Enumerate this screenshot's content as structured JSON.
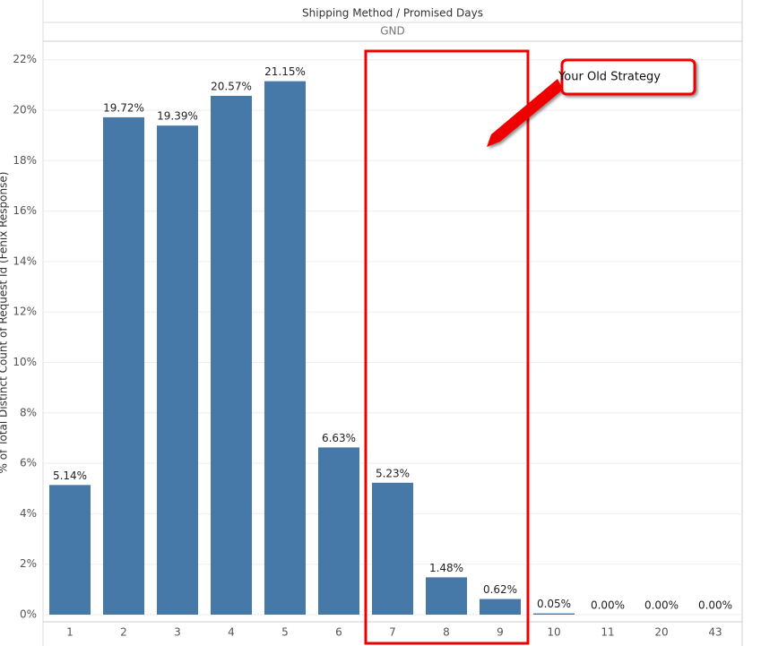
{
  "chart_data": {
    "type": "bar",
    "header_title": "Shipping Method  /  Promised Days",
    "header_group": "GND",
    "y_label": "% of Total Distinct Count of Request Id (Fenix Response)",
    "annotation": "Your Old Strategy",
    "categories": [
      "1",
      "2",
      "3",
      "4",
      "5",
      "6",
      "7",
      "8",
      "9",
      "10",
      "11",
      "20",
      "43"
    ],
    "values": [
      5.14,
      19.72,
      19.39,
      20.57,
      21.15,
      6.63,
      5.23,
      1.48,
      0.62,
      0.05,
      0.0,
      0.0,
      0.0
    ],
    "value_labels": [
      "5.14%",
      "19.72%",
      "19.39%",
      "20.57%",
      "21.15%",
      "6.63%",
      "5.23%",
      "1.48%",
      "0.62%",
      "0.05%",
      "0.00%",
      "0.00%",
      "0.00%"
    ],
    "color": "#4779a8",
    "ylim": [
      0,
      22.7
    ],
    "yticks": [
      {
        "value": 0,
        "label": "0%"
      },
      {
        "value": 2,
        "label": "2%"
      },
      {
        "value": 4,
        "label": "4%"
      },
      {
        "value": 6,
        "label": "6%"
      },
      {
        "value": 8,
        "label": "8%"
      },
      {
        "value": 10,
        "label": "10%"
      },
      {
        "value": 12,
        "label": "12%"
      },
      {
        "value": 14,
        "label": "14%"
      },
      {
        "value": 16,
        "label": "16%"
      },
      {
        "value": 18,
        "label": "18%"
      },
      {
        "value": 20,
        "label": "20%"
      },
      {
        "value": 22,
        "label": "22%"
      }
    ],
    "grid": true
  }
}
